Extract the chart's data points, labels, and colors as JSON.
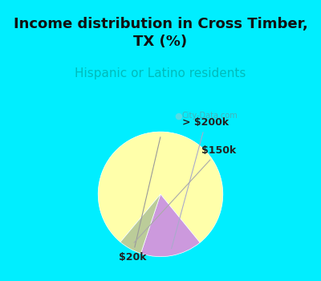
{
  "title": "Income distribution in Cross Timber,\nTX (%)",
  "subtitle": "Hispanic or Latino residents",
  "title_color": "#111111",
  "subtitle_color": "#00bbbb",
  "bg_color_top": "#00eeff",
  "pie_bg_color": "#c8e8d8",
  "slices": [
    {
      "label": "$20k",
      "value": 78,
      "color": "#ffffaa"
    },
    {
      "label": "> $200k",
      "value": 16,
      "color": "#cc99dd"
    },
    {
      "label": "$150k",
      "value": 6,
      "color": "#bbcc99"
    }
  ],
  "label_fontsize": 9,
  "title_fontsize": 13,
  "subtitle_fontsize": 11,
  "watermark": "City-Data.com",
  "startangle": 230
}
